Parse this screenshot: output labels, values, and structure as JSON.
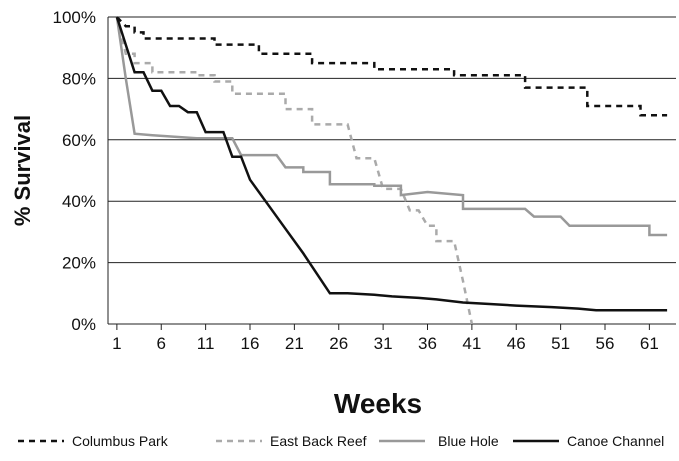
{
  "chart_data": {
    "type": "line",
    "title": "",
    "xlabel": "Weeks",
    "ylabel": "% Survival",
    "xlim": [
      0,
      64
    ],
    "ylim": [
      0,
      100
    ],
    "x_ticks": [
      1,
      6,
      11,
      16,
      21,
      26,
      31,
      36,
      41,
      46,
      51,
      56,
      61
    ],
    "y_ticks": [
      0,
      20,
      40,
      60,
      80,
      100
    ],
    "y_tick_labels": [
      "0%",
      "20%",
      "40%",
      "60%",
      "80%",
      "100%"
    ],
    "grid": "horizontal",
    "legend_position": "bottom",
    "series": [
      {
        "name": "Columbus Park",
        "color": "#111111",
        "dash": "dash",
        "points": [
          [
            1,
            100
          ],
          [
            2,
            97
          ],
          [
            3,
            97
          ],
          [
            3,
            95
          ],
          [
            4,
            95
          ],
          [
            4,
            93
          ],
          [
            12,
            93
          ],
          [
            12,
            91
          ],
          [
            17,
            91
          ],
          [
            17,
            88
          ],
          [
            23,
            88
          ],
          [
            23,
            85
          ],
          [
            30,
            85
          ],
          [
            30,
            83
          ],
          [
            39,
            83
          ],
          [
            39,
            81
          ],
          [
            47,
            81
          ],
          [
            47,
            77
          ],
          [
            54,
            77
          ],
          [
            54,
            71
          ],
          [
            60,
            71
          ],
          [
            60,
            68
          ],
          [
            63,
            68
          ]
        ]
      },
      {
        "name": "East Back Reef",
        "color": "#aaaaaa",
        "dash": "dash",
        "points": [
          [
            1,
            100
          ],
          [
            2,
            88
          ],
          [
            3,
            88
          ],
          [
            3,
            85
          ],
          [
            5,
            85
          ],
          [
            5,
            82
          ],
          [
            10,
            82
          ],
          [
            10,
            81
          ],
          [
            12,
            81
          ],
          [
            12,
            79
          ],
          [
            14,
            79
          ],
          [
            14,
            75
          ],
          [
            20,
            75
          ],
          [
            20,
            70
          ],
          [
            23,
            70
          ],
          [
            23,
            65
          ],
          [
            27,
            65
          ],
          [
            28,
            54
          ],
          [
            30,
            54
          ],
          [
            31,
            44
          ],
          [
            33,
            44
          ],
          [
            34,
            37
          ],
          [
            35,
            37
          ],
          [
            36,
            32
          ],
          [
            37,
            32
          ],
          [
            37,
            27
          ],
          [
            39,
            27
          ],
          [
            40,
            14
          ],
          [
            41,
            0
          ]
        ]
      },
      {
        "name": "Blue Hole",
        "color": "#999999",
        "dash": "solid",
        "points": [
          [
            1,
            100
          ],
          [
            2,
            80
          ],
          [
            3,
            62
          ],
          [
            5,
            61.5
          ],
          [
            10,
            60.5
          ],
          [
            14,
            60.5
          ],
          [
            15,
            55
          ],
          [
            19,
            55
          ],
          [
            20,
            51
          ],
          [
            22,
            51
          ],
          [
            22,
            49.5
          ],
          [
            25,
            49.5
          ],
          [
            25,
            45.5
          ],
          [
            30,
            45.5
          ],
          [
            30,
            45
          ],
          [
            33,
            45
          ],
          [
            33,
            42
          ],
          [
            36,
            43
          ],
          [
            40,
            42
          ],
          [
            40,
            37.5
          ],
          [
            47,
            37.5
          ],
          [
            48,
            35
          ],
          [
            51,
            35
          ],
          [
            52,
            32
          ],
          [
            61,
            32
          ],
          [
            61,
            29
          ],
          [
            63,
            29
          ]
        ]
      },
      {
        "name": "Canoe Channel",
        "color": "#111111",
        "dash": "solid",
        "points": [
          [
            1,
            100
          ],
          [
            3,
            82
          ],
          [
            4,
            82
          ],
          [
            5,
            76
          ],
          [
            6,
            76
          ],
          [
            7,
            71
          ],
          [
            8,
            71
          ],
          [
            9,
            69
          ],
          [
            10,
            69
          ],
          [
            11,
            62.5
          ],
          [
            13,
            62.5
          ],
          [
            14,
            54.5
          ],
          [
            15,
            54.5
          ],
          [
            16,
            47
          ],
          [
            18,
            39
          ],
          [
            20,
            31
          ],
          [
            22,
            23
          ],
          [
            25,
            10
          ],
          [
            27,
            10
          ],
          [
            30,
            9.5
          ],
          [
            32,
            9
          ],
          [
            35,
            8.5
          ],
          [
            37,
            8
          ],
          [
            40,
            7
          ],
          [
            43,
            6.5
          ],
          [
            46,
            6
          ],
          [
            50,
            5.5
          ],
          [
            53,
            5
          ],
          [
            55,
            4.5
          ],
          [
            60,
            4.5
          ],
          [
            63,
            4.5
          ]
        ]
      }
    ]
  }
}
